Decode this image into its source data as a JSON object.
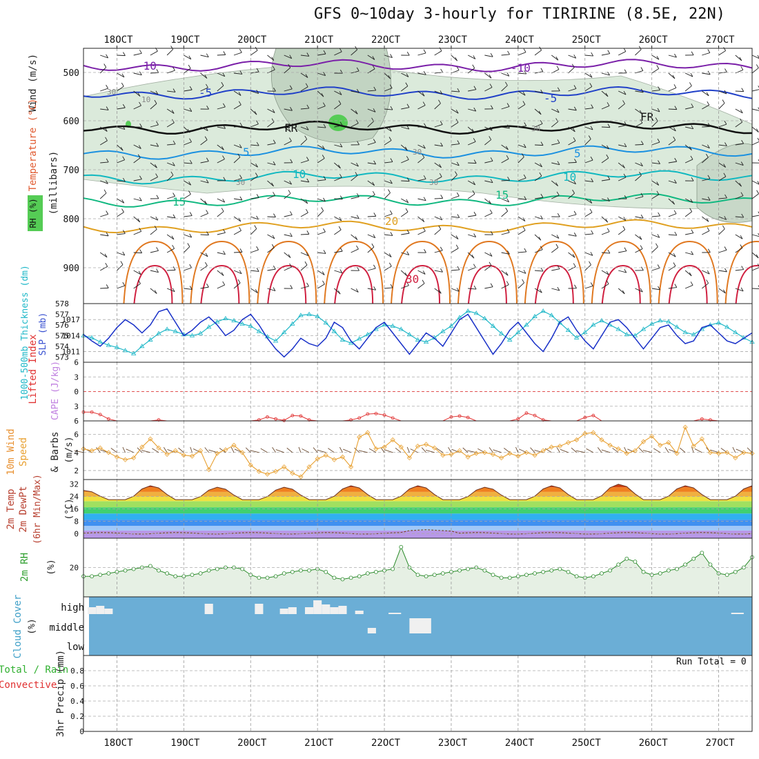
{
  "title": "GFS 0~10day 3-hourly for TIRIRINE (8.5E, 22N)",
  "date_labels": [
    "18OCT",
    "19OCT",
    "20OCT",
    "21OCT",
    "22OCT",
    "23OCT",
    "24OCT",
    "25OCT",
    "26OCT",
    "27OCT"
  ],
  "colors": {
    "temp_minus10": "#7a1fa8",
    "temp_minus5": "#2040c8",
    "temp_5": "#1a90e0",
    "temp_10": "#10b8c0",
    "temp_15": "#10b880",
    "temp_20": "#e0a020",
    "temp_25": "#e07820",
    "temp_30": "#d02040",
    "freezing": "#111111",
    "rh_fill": "#d8e8d8",
    "thickness": "#20b8c8",
    "slp": "#1830c8",
    "lifted_index": "#e03030",
    "wind_speed": "#e8a030",
    "barbs": "#6b4a30",
    "rh2m": "#2a8a2a",
    "cloud_bg": "#6baed6",
    "cloud_fill": "#f0f0f0"
  },
  "panels": {
    "upper": {
      "ylabel_wind": "Wind (m/s)",
      "ylabel_temp": "Temperature (°C)",
      "ylabel_rh": "RH (%)",
      "ylabel_mb": "(millibars)",
      "yticks": [
        "500",
        "600",
        "700",
        "800",
        "900"
      ],
      "contour_labels": [
        "-10",
        "-5",
        "FR",
        "5",
        "10",
        "15",
        "20",
        "-10",
        "-5",
        "FR",
        "5",
        "10",
        "15",
        "30",
        "10",
        "30",
        "30",
        "30",
        "30",
        "30"
      ]
    },
    "slp": {
      "ylabel_thk": "1000-500mb Thickness (dm)",
      "ylabel_slp": "SLP (mb)",
      "thk_ticks": [
        "578",
        "577",
        "576",
        "575",
        "574",
        "573"
      ],
      "slp_ticks": [
        "1017",
        "1014",
        "1011"
      ]
    },
    "li": {
      "ylabel_li": "Lifted Index",
      "ylabel_cape": "CAPE (J/kg)",
      "yticks": [
        "-6",
        "-3",
        "0",
        "3",
        "6"
      ]
    },
    "wind10": {
      "ylabel_1": "10m Wind",
      "ylabel_2": "Speed",
      "ylabel_3": "& Barbs",
      "ylabel_unit": "(m/s)",
      "yticks": [
        "6",
        "4",
        "2"
      ]
    },
    "temp2m": {
      "ylabel_1": "2m Temp",
      "ylabel_2": "2m DewPt",
      "ylabel_3": "(6hr Min/Max)",
      "ylabel_unit": "(°C)",
      "yticks": [
        "32",
        "24",
        "16",
        "8",
        "0"
      ]
    },
    "rh2m": {
      "ylabel": "2m RH",
      "ylabel_unit": "(%)",
      "yticks": [
        "20"
      ]
    },
    "cloud": {
      "ylabel": "Cloud Cover",
      "ylabel_unit": "(%)",
      "levels": [
        "high",
        "middle",
        "low"
      ]
    },
    "precip": {
      "ylabel_1": "Total / Rain",
      "ylabel_2": "Convective",
      "ylabel_3": "3hr Precip (mm)",
      "yticks": [
        "0.8",
        "0.6",
        "0.4",
        "0.2",
        "0"
      ],
      "run_total": "Run Total = 0"
    }
  },
  "chart_data": {
    "type": "line",
    "x_count": 81,
    "x_start": "17OCT 12Z",
    "x_step_hours": 3,
    "series": [
      {
        "name": "SLP",
        "unit": "mb",
        "values": [
          1014.2,
          1013.0,
          1012.0,
          1013.5,
          1015.5,
          1017.0,
          1016.0,
          1014.5,
          1016.0,
          1018.5,
          1019.0,
          1016.5,
          1014.0,
          1015.0,
          1016.5,
          1017.5,
          1016.0,
          1014.0,
          1015.0,
          1017.0,
          1018.0,
          1016.0,
          1013.5,
          1011.5,
          1010.0,
          1011.5,
          1013.5,
          1012.5,
          1012.0,
          1013.5,
          1016.5,
          1015.5,
          1013.0,
          1011.5,
          1013.5,
          1015.5,
          1016.5,
          1014.5,
          1012.5,
          1010.5,
          1012.5,
          1014.5,
          1013.5,
          1012.0,
          1014.5,
          1017.0,
          1018.0,
          1015.5,
          1013.0,
          1010.5,
          1012.5,
          1015.0,
          1016.5,
          1014.5,
          1012.5,
          1011.0,
          1013.5,
          1016.5,
          1017.5,
          1015.0,
          1013.0,
          1011.5,
          1014.0,
          1016.5,
          1017.0,
          1015.5,
          1013.5,
          1011.5,
          1013.5,
          1015.5,
          1016.0,
          1014.0,
          1012.5,
          1013.0,
          1015.5,
          1016.0,
          1014.5,
          1013.0,
          1012.5,
          1013.5,
          1014.5
        ]
      },
      {
        "name": "1000-500mb Thickness",
        "unit": "dm",
        "values": [
          575.0,
          574.8,
          574.4,
          574.1,
          573.9,
          573.6,
          573.3,
          574.0,
          574.6,
          575.2,
          575.6,
          575.4,
          575.1,
          575.0,
          575.2,
          575.8,
          576.3,
          576.6,
          576.4,
          576.1,
          575.9,
          575.4,
          574.9,
          574.5,
          575.3,
          576.1,
          576.9,
          577.0,
          576.8,
          576.2,
          575.4,
          574.6,
          574.3,
          574.7,
          575.1,
          575.6,
          576.0,
          575.9,
          575.6,
          575.1,
          574.6,
          574.4,
          574.8,
          575.4,
          575.9,
          576.7,
          577.3,
          577.1,
          576.6,
          575.9,
          575.2,
          574.6,
          575.3,
          576.0,
          576.8,
          577.3,
          576.9,
          576.2,
          575.5,
          574.8,
          575.3,
          576.0,
          576.4,
          576.0,
          575.6,
          575.1,
          575.0,
          575.6,
          576.1,
          576.4,
          576.3,
          575.8,
          575.3,
          575.1,
          575.6,
          576.0,
          576.2,
          575.8,
          575.3,
          574.8,
          574.4
        ]
      },
      {
        "name": "10m Wind Speed",
        "unit": "m/s",
        "values": [
          4.4,
          4.2,
          4.5,
          4.0,
          3.5,
          3.2,
          3.4,
          4.6,
          5.5,
          4.5,
          3.8,
          4.2,
          3.7,
          3.6,
          4.2,
          2.1,
          3.9,
          4.3,
          4.8,
          4.0,
          2.6,
          1.9,
          1.6,
          1.9,
          2.4,
          1.7,
          1.3,
          2.4,
          3.3,
          3.7,
          3.2,
          3.5,
          2.4,
          5.7,
          6.2,
          4.4,
          4.6,
          5.4,
          4.6,
          3.4,
          4.7,
          4.9,
          4.5,
          3.7,
          3.8,
          4.2,
          3.5,
          3.9,
          4.0,
          3.8,
          3.4,
          3.9,
          3.6,
          4.0,
          3.7,
          4.2,
          4.6,
          4.7,
          5.1,
          5.4,
          6.1,
          6.2,
          5.4,
          4.8,
          4.4,
          3.9,
          4.2,
          5.2,
          5.8,
          4.8,
          5.1,
          3.9,
          6.8,
          4.7,
          5.5,
          4.0,
          3.9,
          4.0,
          3.4,
          4.0,
          3.9
        ]
      },
      {
        "name": "2m RH",
        "unit": "%",
        "values": [
          14,
          14,
          15,
          16,
          17,
          18,
          19,
          20,
          21,
          18,
          16,
          14,
          14,
          15,
          16,
          18,
          19,
          20,
          20,
          19,
          15,
          13,
          13,
          14,
          16,
          17,
          18,
          18,
          19,
          17,
          13,
          12,
          13,
          14,
          16,
          17,
          18,
          19,
          34,
          20,
          15,
          14,
          15,
          16,
          17,
          18,
          19,
          20,
          18,
          15,
          13,
          13,
          14,
          15,
          16,
          17,
          18,
          19,
          17,
          14,
          13,
          14,
          16,
          18,
          22,
          26,
          24,
          17,
          15,
          16,
          18,
          19,
          22,
          26,
          30,
          22,
          16,
          15,
          17,
          20,
          27
        ]
      },
      {
        "name": "Lifted Index",
        "unit": "",
        "values": [
          4.2,
          4.2,
          4.7,
          5.6,
          6,
          6,
          6,
          6,
          6,
          5.8,
          6,
          6,
          6,
          6,
          6,
          6,
          6,
          6,
          6,
          6,
          6,
          5.8,
          5.2,
          5.6,
          5.9,
          4.9,
          5.0,
          5.8,
          6,
          6,
          6,
          6,
          5.8,
          5.4,
          4.6,
          4.5,
          4.8,
          5.4,
          6,
          6,
          6,
          6,
          6,
          6,
          5.2,
          5.0,
          5.3,
          6,
          6,
          6,
          6,
          6,
          5.6,
          4.4,
          4.9,
          5.8,
          6,
          6,
          6,
          6,
          5.3,
          4.9,
          6,
          6,
          6,
          6,
          6,
          6,
          6,
          6,
          6,
          6,
          6,
          6,
          5.6,
          5.8,
          6,
          6,
          6,
          6,
          6
        ]
      },
      {
        "name": "2m Temp",
        "unit": "°C",
        "max_values": [
          28,
          31,
          30,
          30,
          31,
          31,
          30,
          31,
          32,
          31
        ]
      }
    ],
    "ylim_slp": [
      1009,
      1020
    ],
    "ylim_thk": [
      572.5,
      578
    ],
    "ylim_wind": [
      1,
      7.5
    ],
    "ylim_temp2m": [
      -3,
      35
    ],
    "ylim_rh2m": [
      0,
      40
    ],
    "ylim_li": [
      -6,
      6
    ],
    "ylim_precip": [
      0,
      1.0
    ],
    "cloud_high": [
      0,
      10,
      12,
      8,
      0,
      0,
      0,
      0,
      0,
      0,
      0,
      0,
      0,
      0,
      0,
      15,
      0,
      0,
      0,
      0,
      0,
      15,
      0,
      0,
      8,
      10,
      0,
      10,
      20,
      14,
      10,
      12,
      0,
      5,
      0,
      0,
      0,
      0,
      0,
      0,
      0,
      0,
      0,
      0,
      0,
      0,
      0,
      0,
      0,
      0,
      0,
      0,
      0,
      0,
      0,
      0,
      0,
      0,
      0,
      0,
      0,
      0,
      0,
      0,
      0,
      0,
      0,
      0,
      0,
      0,
      0,
      0,
      0,
      0,
      0,
      0,
      0,
      0,
      0,
      0,
      0
    ],
    "cloud_mid": [
      0,
      0,
      0,
      0,
      0,
      0,
      0,
      0,
      0,
      0,
      0,
      0,
      0,
      0,
      0,
      0,
      0,
      0,
      0,
      0,
      0,
      0,
      0,
      0,
      0,
      0,
      0,
      0,
      0,
      0,
      0,
      0,
      0,
      0,
      0,
      0,
      0,
      0,
      0,
      5,
      0,
      0,
      0,
      0,
      0,
      0,
      0,
      0,
      0,
      0,
      0,
      0,
      0,
      0,
      0,
      0,
      0,
      0,
      0,
      0,
      0,
      0,
      0,
      0,
      0,
      0,
      0,
      0,
      0,
      0,
      0,
      0,
      0,
      0,
      0,
      0,
      0,
      0,
      0,
      0,
      0
    ],
    "precip": [
      0,
      0,
      0,
      0,
      0,
      0,
      0,
      0,
      0,
      0,
      0,
      0,
      0,
      0,
      0,
      0,
      0,
      0,
      0,
      0,
      0,
      0,
      0,
      0,
      0,
      0,
      0,
      0,
      0,
      0,
      0,
      0,
      0,
      0,
      0,
      0,
      0,
      0,
      0,
      0,
      0,
      0,
      0,
      0,
      0,
      0,
      0,
      0,
      0,
      0,
      0,
      0,
      0,
      0,
      0,
      0,
      0,
      0,
      0,
      0,
      0,
      0,
      0,
      0,
      0,
      0,
      0,
      0,
      0,
      0,
      0,
      0,
      0,
      0,
      0,
      0,
      0,
      0,
      0,
      0,
      0
    ]
  }
}
